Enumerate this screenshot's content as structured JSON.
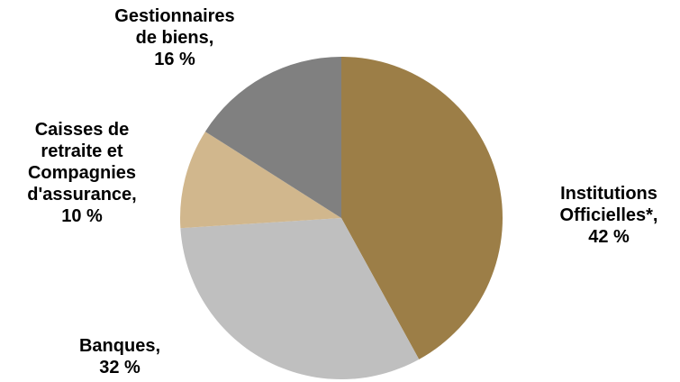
{
  "chart_data": {
    "type": "pie",
    "start_angle_deg": 0,
    "direction": "clockwise",
    "slices": [
      {
        "category": "Institutions Officielles*",
        "value": 42,
        "label_lines": [
          "Institutions",
          "Officielles*,",
          "42 %"
        ],
        "color": "#9C7E47"
      },
      {
        "category": "Banques",
        "value": 32,
        "label_lines": [
          "Banques,",
          "32 %"
        ],
        "color": "#BFBFBF"
      },
      {
        "category": "Caisses de retraite et Compagnies d'assurance",
        "value": 10,
        "label_lines": [
          "Caisses de",
          "retraite et",
          "Compagnies",
          "d'assurance,",
          "10 %"
        ],
        "color": "#D1B78D"
      },
      {
        "category": "Gestionnaires de biens",
        "value": 16,
        "label_lines": [
          "Gestionnaires",
          "de biens,",
          "16 %"
        ],
        "color": "#808080"
      }
    ],
    "legend": "none"
  }
}
